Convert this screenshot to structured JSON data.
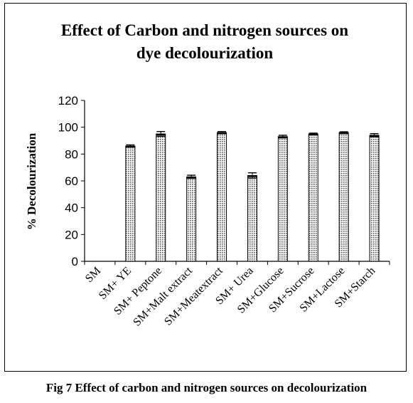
{
  "chart_data": {
    "type": "bar",
    "title": [
      "Effect of Carbon and nitrogen sources on",
      "dye decolourization"
    ],
    "xlabel": "",
    "ylabel": "% Decolourization",
    "ylim": [
      0,
      120
    ],
    "yticks": [
      0,
      20,
      40,
      60,
      80,
      100,
      120
    ],
    "categories": [
      "SM",
      "SM+ YE",
      "SM+ Peptone",
      "SM+Malt extract",
      "SM+Meatextract",
      "SM+ Urea",
      "SM+Glucose",
      "SM+Sucrose",
      "SM+Lactose",
      "SM+Starch"
    ],
    "values": [
      0,
      86,
      95,
      63,
      96,
      64,
      93,
      95,
      96,
      94
    ],
    "errors": [
      0,
      0.8,
      1.8,
      1.2,
      0.8,
      2,
      1,
      0.6,
      0.6,
      1.2
    ],
    "grid": false,
    "legend": "none",
    "bar_fill": "#d9d9d9",
    "bar_stroke": "#000000"
  },
  "caption": "Fig 7 Effect of carbon and nitrogen sources on decolourization"
}
